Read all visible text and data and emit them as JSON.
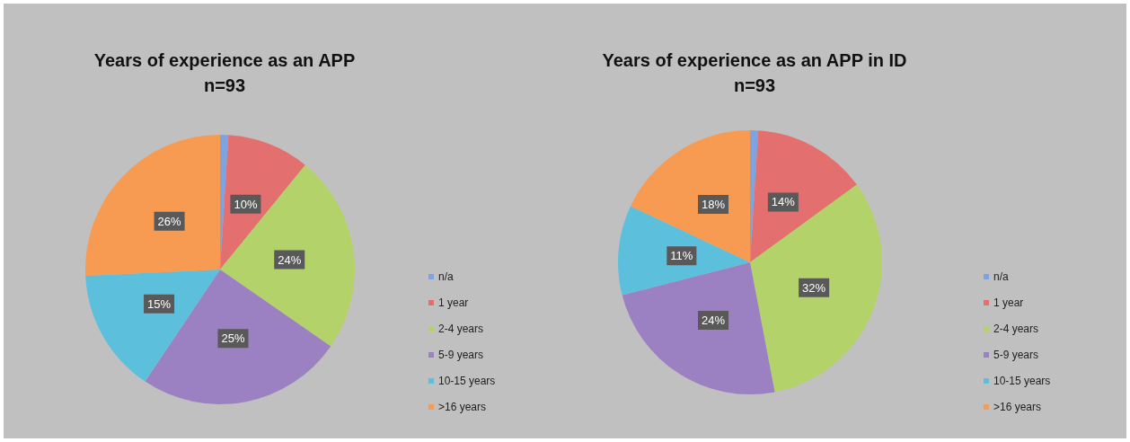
{
  "chart_data": [
    {
      "type": "pie",
      "title": "Years of experience as an APP",
      "subtitle": "n=93",
      "categories": [
        "n/a",
        "1 year",
        "2-4 years",
        "5-9 years",
        "10-15 years",
        ">16 years"
      ],
      "values": [
        1,
        10,
        24,
        25,
        15,
        26
      ],
      "value_labels": [
        null,
        "10%",
        "24%",
        "25%",
        "15%",
        "26%"
      ],
      "colors": [
        "#7ea3de",
        "#e36f6f",
        "#b3d36a",
        "#9b80c2",
        "#5cc0dd",
        "#f79a52"
      ],
      "legend": "right"
    },
    {
      "type": "pie",
      "title": "Years of experience as an APP in ID",
      "subtitle": "n=93",
      "categories": [
        "n/a",
        "1 year",
        "2-4 years",
        "5-9 years",
        "10-15 years",
        ">16 years"
      ],
      "values": [
        1,
        14,
        32,
        24,
        11,
        18
      ],
      "value_labels": [
        null,
        "14%",
        "32%",
        "24%",
        "11%",
        "18%"
      ],
      "colors": [
        "#7ea3de",
        "#e36f6f",
        "#b3d36a",
        "#9b80c2",
        "#5cc0dd",
        "#f79a52"
      ],
      "legend": "right"
    }
  ]
}
